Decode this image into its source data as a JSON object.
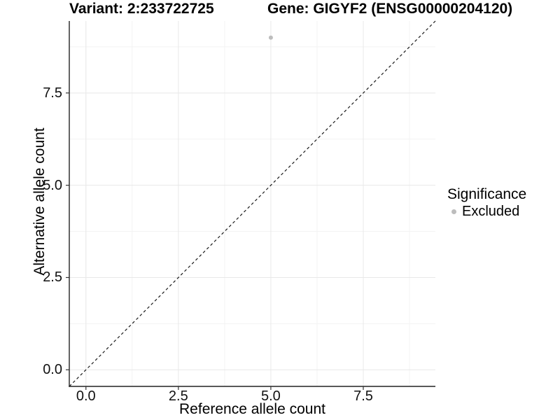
{
  "chart_data": {
    "type": "scatter",
    "title_left": "Variant: 2:233722725",
    "title_right": "Gene: GIGYF2 (ENSG00000204120)",
    "xlabel": "Reference allele count",
    "ylabel": "Alternative allele count",
    "xlim": [
      -0.45,
      9.45
    ],
    "ylim": [
      -0.45,
      9.45
    ],
    "x_major_ticks": [
      0,
      2.5,
      5,
      7.5
    ],
    "x_tick_labels": [
      "0.0",
      "2.5",
      "5.0",
      "7.5"
    ],
    "y_major_ticks": [
      0,
      2.5,
      5,
      7.5
    ],
    "y_tick_labels": [
      "0.0",
      "2.5",
      "5.0",
      "7.5"
    ],
    "x_minor_ticks": [
      1.25,
      3.75,
      6.25,
      8.75
    ],
    "y_minor_ticks": [
      1.25,
      3.75,
      6.25,
      8.75
    ],
    "grid": {
      "show": true,
      "major_color": "#E8E8E8",
      "minor_color": "#F3F3F3"
    },
    "axis_color": "#222222",
    "tick_mark_color": "#333333",
    "series": [
      {
        "name": "Excluded",
        "color": "#BDBDBD",
        "points": [
          {
            "x": 5,
            "y": 9
          }
        ]
      }
    ],
    "reference_line": {
      "meaning": "identity line y = x",
      "style": "dashed",
      "color": "#1A1A1A",
      "from": [
        -0.45,
        -0.45
      ],
      "to": [
        9.45,
        9.45
      ]
    },
    "legend": {
      "title": "Significance",
      "position": "right",
      "entries": [
        {
          "label": "Excluded",
          "marker": "circle",
          "color": "#BDBDBD"
        }
      ]
    }
  }
}
